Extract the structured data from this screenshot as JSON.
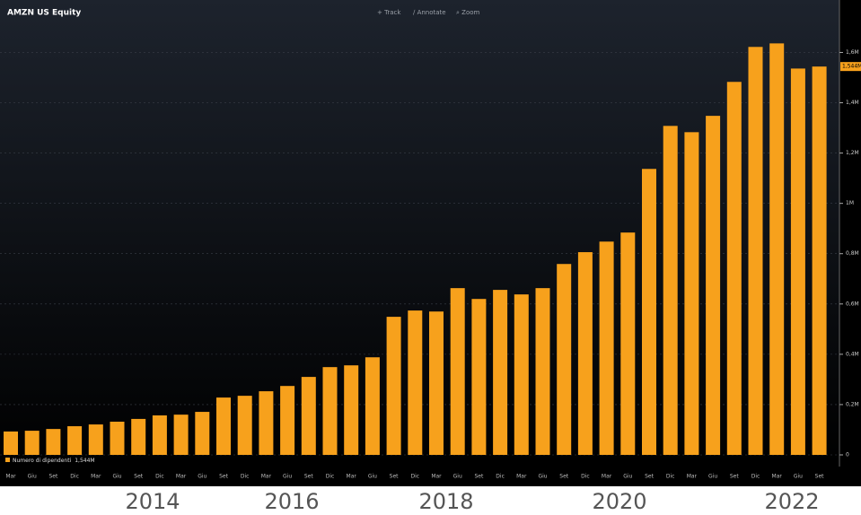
{
  "header": {
    "ticker": "AMZN US Equity",
    "tools": [
      "+ Track",
      "∕ Annotate",
      "⌕ Zoom"
    ]
  },
  "chart_data": {
    "type": "bar",
    "categories": [
      "Mar",
      "Giu",
      "Set",
      "Dic",
      "Mar",
      "Giu",
      "Set",
      "Dic",
      "Mar",
      "Giu",
      "Set",
      "Dic",
      "Mar",
      "Giu",
      "Set",
      "Dic",
      "Mar",
      "Giu",
      "Set",
      "Dic",
      "Mar",
      "Giu",
      "Set",
      "Dic",
      "Mar",
      "Giu",
      "Set",
      "Dic",
      "Mar",
      "Giu",
      "Set",
      "Dic",
      "Mar",
      "Giu",
      "Set",
      "Dic",
      "Mar",
      "Giu",
      "Set"
    ],
    "series": [
      {
        "name": "Numero di dipendenti",
        "color": "#f7a11c",
        "values": [
          0.093,
          0.096,
          0.103,
          0.114,
          0.121,
          0.132,
          0.143,
          0.157,
          0.16,
          0.171,
          0.228,
          0.235,
          0.253,
          0.274,
          0.31,
          0.349,
          0.356,
          0.388,
          0.549,
          0.574,
          0.57,
          0.663,
          0.62,
          0.656,
          0.638,
          0.663,
          0.759,
          0.806,
          0.848,
          0.884,
          1.137,
          1.308,
          1.283,
          1.348,
          1.483,
          1.622,
          1.636,
          1.536,
          1.544
        ],
        "value_labels": [
          null,
          null,
          null,
          null,
          null,
          null,
          null,
          null,
          null,
          null,
          null,
          null,
          null,
          null,
          null,
          null,
          null,
          null,
          null,
          null,
          null,
          null,
          null,
          null,
          null,
          null,
          null,
          null,
          null,
          null,
          null,
          null,
          null,
          null,
          null,
          null,
          null,
          null,
          "1,544M"
        ]
      }
    ],
    "year_labels": [
      "2014",
      "2016",
      "2018",
      "2020",
      "2022"
    ],
    "ylim": [
      0,
      1.78
    ],
    "yticks": [
      0,
      {
        "value": 0.2,
        "label": "0,2M"
      },
      {
        "value": 0.4,
        "label": "0,4M"
      },
      {
        "value": 0.6,
        "label": "0,6M"
      },
      {
        "value": 0.8,
        "label": "0,8M"
      },
      {
        "value": 1,
        "label": "1M"
      },
      {
        "value": 1.2,
        "label": "1,2M"
      },
      {
        "value": 1.4,
        "label": "1,4M"
      },
      {
        "value": 1.6,
        "label": "1,6M"
      }
    ],
    "grid": true
  }
}
